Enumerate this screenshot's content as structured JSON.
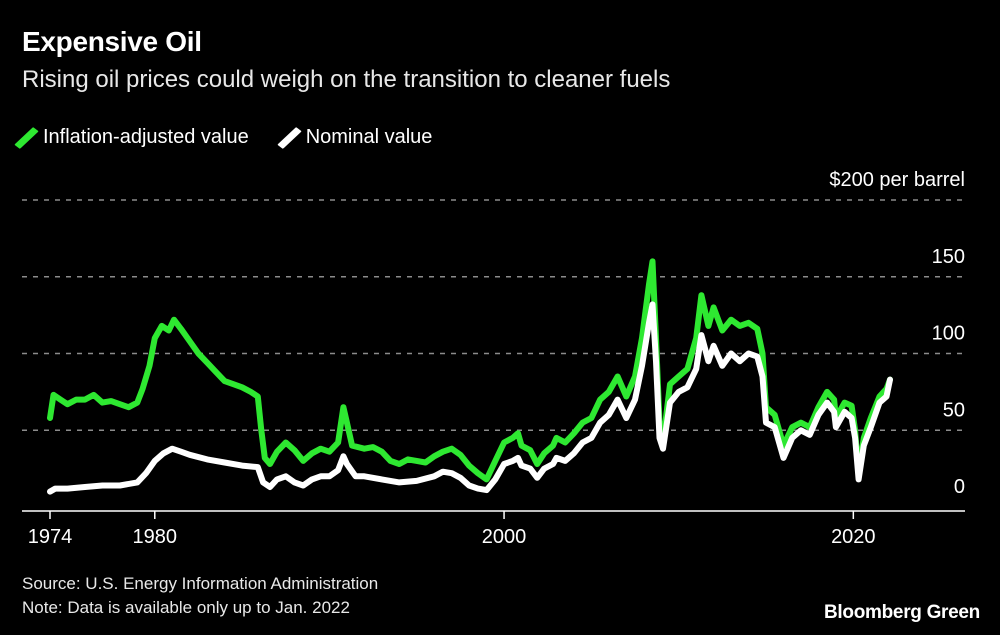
{
  "header": {
    "title": "Expensive Oil",
    "subtitle": "Rising oil prices could weigh on the transition to cleaner fuels"
  },
  "footer": {
    "source": "Source: U.S. Energy Information Administration",
    "note": "Note: Data is available only up to Jan. 2022",
    "brand": "Bloomberg Green"
  },
  "colors": {
    "background": "#000000",
    "inflation_adjusted": "#2ee831",
    "nominal": "#ffffff",
    "grid": "#8c8c8c"
  },
  "chart_data": {
    "type": "line",
    "title": "Expensive Oil",
    "subtitle": "Rising oil prices could weigh on the transition to cleaner fuels",
    "xlabel": "",
    "ylabel": "",
    "y_unit_label": "$200 per barrel",
    "xlim": [
      1974,
      2022.1
    ],
    "ylim": [
      0,
      200
    ],
    "x_ticks": [
      1974,
      1980,
      2000,
      2020
    ],
    "x_tick_labels": [
      "1974",
      "1980",
      "2000",
      "2020"
    ],
    "y_ticks": [
      0,
      50,
      100,
      150,
      200
    ],
    "y_tick_labels": [
      "0",
      "50",
      "100",
      "150",
      "$200 per barrel"
    ],
    "grid": "horizontal dashed",
    "legend_position": "top-left",
    "series": [
      {
        "name": "Inflation-adjusted value",
        "color": "#2ee831",
        "points": [
          [
            1974.0,
            58
          ],
          [
            1974.2,
            73
          ],
          [
            1974.6,
            70
          ],
          [
            1975.0,
            67
          ],
          [
            1975.5,
            70
          ],
          [
            1976.0,
            70
          ],
          [
            1976.5,
            73
          ],
          [
            1977.0,
            68
          ],
          [
            1977.5,
            69
          ],
          [
            1978.0,
            67
          ],
          [
            1978.5,
            65
          ],
          [
            1979.0,
            68
          ],
          [
            1979.3,
            77
          ],
          [
            1979.7,
            92
          ],
          [
            1980.0,
            110
          ],
          [
            1980.4,
            118
          ],
          [
            1980.8,
            115
          ],
          [
            1981.1,
            122
          ],
          [
            1981.5,
            116
          ],
          [
            1982.0,
            108
          ],
          [
            1982.5,
            100
          ],
          [
            1983.0,
            94
          ],
          [
            1983.5,
            88
          ],
          [
            1984.0,
            82
          ],
          [
            1984.5,
            80
          ],
          [
            1985.0,
            78
          ],
          [
            1985.5,
            75
          ],
          [
            1985.9,
            72
          ],
          [
            1986.1,
            50
          ],
          [
            1986.3,
            32
          ],
          [
            1986.6,
            28
          ],
          [
            1987.0,
            36
          ],
          [
            1987.5,
            42
          ],
          [
            1988.0,
            37
          ],
          [
            1988.5,
            30
          ],
          [
            1989.0,
            35
          ],
          [
            1989.5,
            38
          ],
          [
            1990.0,
            36
          ],
          [
            1990.5,
            42
          ],
          [
            1990.8,
            65
          ],
          [
            1991.0,
            55
          ],
          [
            1991.3,
            40
          ],
          [
            1992.0,
            38
          ],
          [
            1992.5,
            39
          ],
          [
            1993.0,
            36
          ],
          [
            1993.5,
            30
          ],
          [
            1994.0,
            28
          ],
          [
            1994.5,
            31
          ],
          [
            1995.0,
            30
          ],
          [
            1995.5,
            29
          ],
          [
            1996.0,
            33
          ],
          [
            1996.5,
            36
          ],
          [
            1997.0,
            38
          ],
          [
            1997.5,
            34
          ],
          [
            1998.0,
            27
          ],
          [
            1998.5,
            22
          ],
          [
            1999.0,
            18
          ],
          [
            1999.5,
            30
          ],
          [
            2000.0,
            42
          ],
          [
            2000.5,
            45
          ],
          [
            2000.8,
            48
          ],
          [
            2001.0,
            40
          ],
          [
            2001.5,
            37
          ],
          [
            2001.9,
            28
          ],
          [
            2002.3,
            35
          ],
          [
            2002.8,
            40
          ],
          [
            2003.0,
            45
          ],
          [
            2003.5,
            42
          ],
          [
            2004.0,
            48
          ],
          [
            2004.5,
            55
          ],
          [
            2005.0,
            58
          ],
          [
            2005.5,
            70
          ],
          [
            2006.0,
            75
          ],
          [
            2006.5,
            85
          ],
          [
            2007.0,
            72
          ],
          [
            2007.5,
            85
          ],
          [
            2007.9,
            110
          ],
          [
            2008.3,
            145
          ],
          [
            2008.5,
            160
          ],
          [
            2008.7,
            110
          ],
          [
            2008.9,
            55
          ],
          [
            2009.1,
            42
          ],
          [
            2009.5,
            80
          ],
          [
            2010.0,
            85
          ],
          [
            2010.5,
            90
          ],
          [
            2011.0,
            110
          ],
          [
            2011.3,
            138
          ],
          [
            2011.7,
            118
          ],
          [
            2012.0,
            130
          ],
          [
            2012.5,
            115
          ],
          [
            2013.0,
            122
          ],
          [
            2013.5,
            118
          ],
          [
            2014.0,
            120
          ],
          [
            2014.5,
            116
          ],
          [
            2014.8,
            100
          ],
          [
            2015.0,
            65
          ],
          [
            2015.5,
            60
          ],
          [
            2016.0,
            40
          ],
          [
            2016.5,
            52
          ],
          [
            2017.0,
            55
          ],
          [
            2017.5,
            52
          ],
          [
            2018.0,
            65
          ],
          [
            2018.5,
            75
          ],
          [
            2018.9,
            70
          ],
          [
            2019.0,
            58
          ],
          [
            2019.5,
            68
          ],
          [
            2019.9,
            66
          ],
          [
            2020.1,
            50
          ],
          [
            2020.3,
            22
          ],
          [
            2020.6,
            45
          ],
          [
            2021.0,
            58
          ],
          [
            2021.5,
            72
          ],
          [
            2021.9,
            77
          ],
          [
            2022.1,
            83
          ]
        ]
      },
      {
        "name": "Nominal value",
        "color": "#ffffff",
        "points": [
          [
            1974.0,
            10
          ],
          [
            1974.3,
            12
          ],
          [
            1975.0,
            12
          ],
          [
            1976.0,
            13
          ],
          [
            1977.0,
            14
          ],
          [
            1978.0,
            14
          ],
          [
            1979.0,
            16
          ],
          [
            1979.5,
            22
          ],
          [
            1980.0,
            30
          ],
          [
            1980.5,
            35
          ],
          [
            1981.0,
            38
          ],
          [
            1981.5,
            36
          ],
          [
            1982.0,
            34
          ],
          [
            1983.0,
            31
          ],
          [
            1984.0,
            29
          ],
          [
            1985.0,
            27
          ],
          [
            1985.9,
            26
          ],
          [
            1986.2,
            16
          ],
          [
            1986.6,
            13
          ],
          [
            1987.0,
            18
          ],
          [
            1987.5,
            20
          ],
          [
            1988.0,
            16
          ],
          [
            1988.5,
            14
          ],
          [
            1989.0,
            18
          ],
          [
            1989.5,
            20
          ],
          [
            1990.0,
            20
          ],
          [
            1990.5,
            24
          ],
          [
            1990.8,
            33
          ],
          [
            1991.0,
            28
          ],
          [
            1991.5,
            20
          ],
          [
            1992.0,
            20
          ],
          [
            1993.0,
            18
          ],
          [
            1994.0,
            16
          ],
          [
            1995.0,
            17
          ],
          [
            1996.0,
            20
          ],
          [
            1996.5,
            23
          ],
          [
            1997.0,
            22
          ],
          [
            1997.5,
            19
          ],
          [
            1998.0,
            14
          ],
          [
            1998.5,
            12
          ],
          [
            1999.0,
            11
          ],
          [
            1999.5,
            18
          ],
          [
            2000.0,
            28
          ],
          [
            2000.5,
            30
          ],
          [
            2000.8,
            32
          ],
          [
            2001.0,
            27
          ],
          [
            2001.5,
            25
          ],
          [
            2001.9,
            19
          ],
          [
            2002.3,
            25
          ],
          [
            2002.8,
            28
          ],
          [
            2003.0,
            32
          ],
          [
            2003.5,
            30
          ],
          [
            2004.0,
            35
          ],
          [
            2004.5,
            42
          ],
          [
            2005.0,
            45
          ],
          [
            2005.5,
            55
          ],
          [
            2006.0,
            60
          ],
          [
            2006.5,
            70
          ],
          [
            2007.0,
            58
          ],
          [
            2007.5,
            70
          ],
          [
            2007.9,
            92
          ],
          [
            2008.3,
            120
          ],
          [
            2008.5,
            132
          ],
          [
            2008.7,
            95
          ],
          [
            2008.9,
            45
          ],
          [
            2009.1,
            38
          ],
          [
            2009.5,
            68
          ],
          [
            2010.0,
            75
          ],
          [
            2010.5,
            78
          ],
          [
            2011.0,
            90
          ],
          [
            2011.3,
            112
          ],
          [
            2011.7,
            95
          ],
          [
            2012.0,
            105
          ],
          [
            2012.5,
            92
          ],
          [
            2013.0,
            100
          ],
          [
            2013.5,
            95
          ],
          [
            2014.0,
            100
          ],
          [
            2014.5,
            98
          ],
          [
            2014.8,
            85
          ],
          [
            2015.0,
            55
          ],
          [
            2015.5,
            52
          ],
          [
            2016.0,
            32
          ],
          [
            2016.5,
            45
          ],
          [
            2017.0,
            50
          ],
          [
            2017.5,
            47
          ],
          [
            2018.0,
            60
          ],
          [
            2018.5,
            68
          ],
          [
            2018.9,
            62
          ],
          [
            2019.0,
            52
          ],
          [
            2019.5,
            62
          ],
          [
            2019.9,
            58
          ],
          [
            2020.1,
            45
          ],
          [
            2020.3,
            18
          ],
          [
            2020.6,
            40
          ],
          [
            2021.0,
            52
          ],
          [
            2021.5,
            68
          ],
          [
            2021.9,
            72
          ],
          [
            2022.1,
            83
          ]
        ]
      }
    ]
  }
}
